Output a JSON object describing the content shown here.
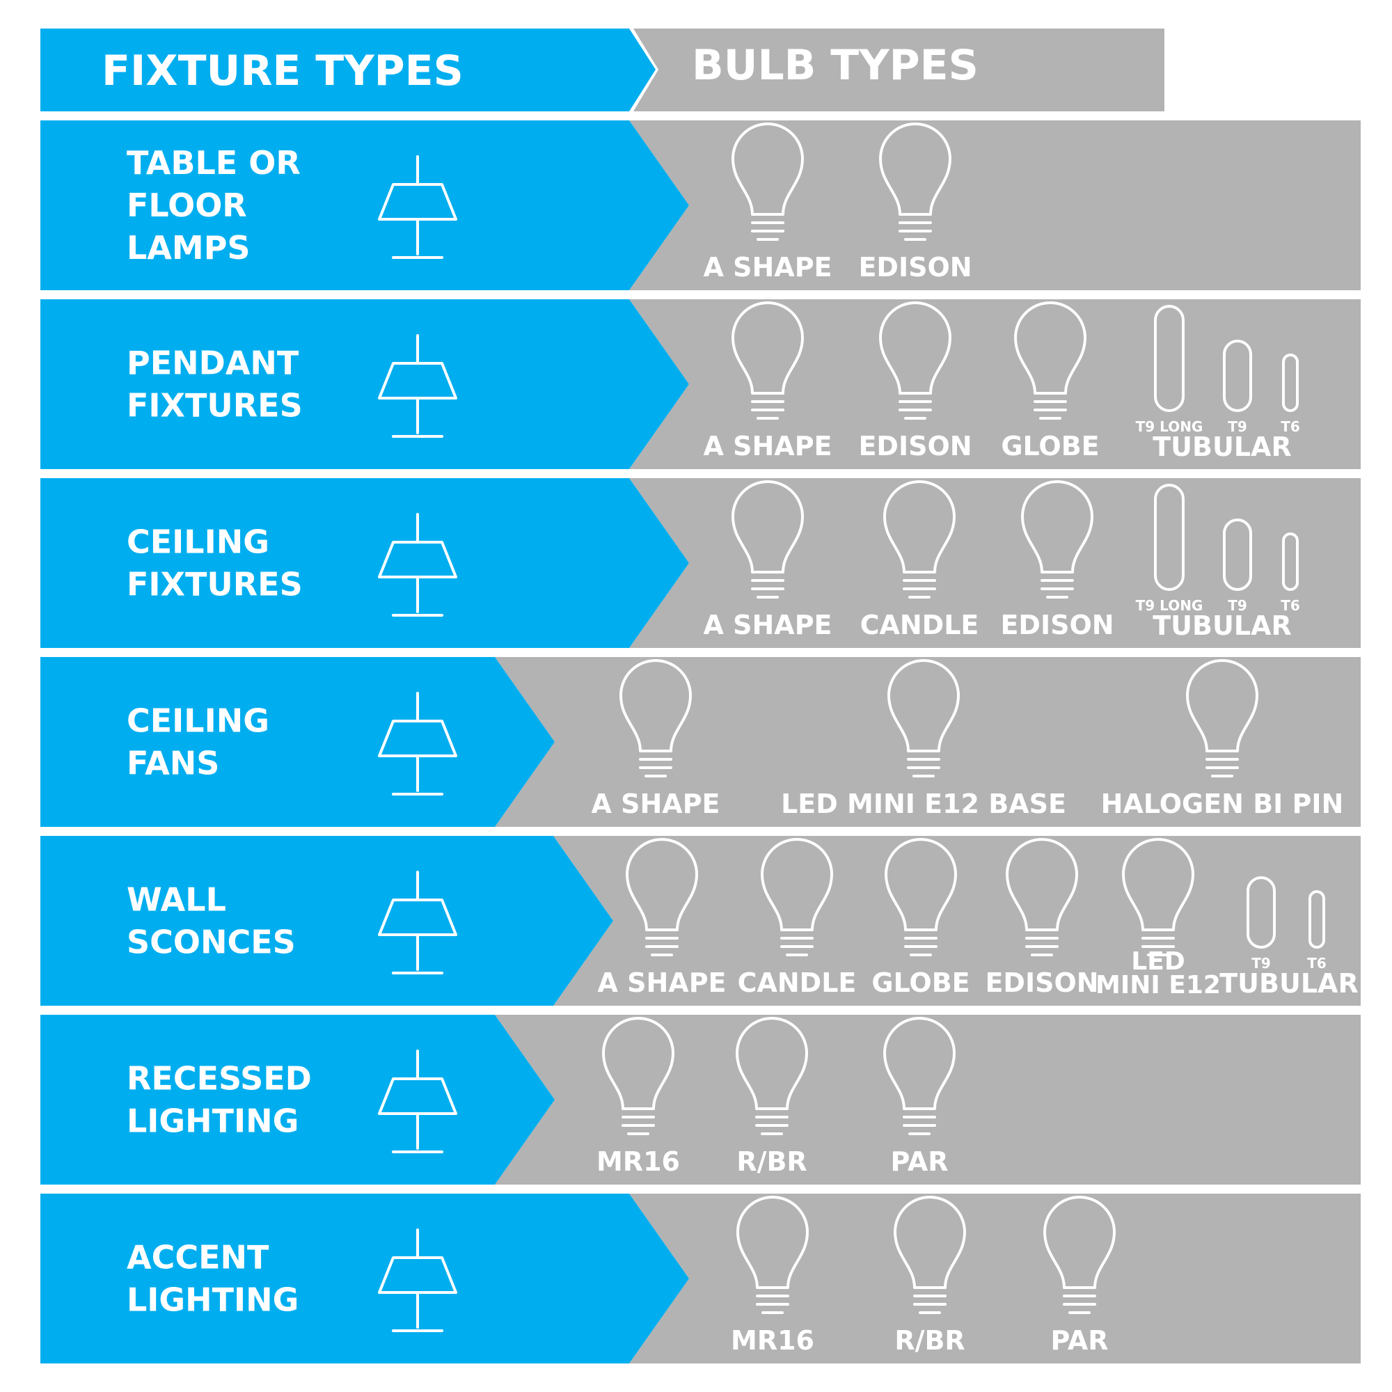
{
  "header": {
    "fixture_title": "FIXTURE TYPES",
    "bulb_title": "BULB TYPES"
  },
  "rows": [
    {
      "fixture": [
        "TABLE OR",
        "FLOOR",
        "LAMPS"
      ],
      "bulbs": [
        {
          "label": "A SHAPE"
        },
        {
          "label": "EDISON"
        }
      ]
    },
    {
      "fixture": [
        "PENDANT",
        "FIXTURES"
      ],
      "bulbs": [
        {
          "label": "A SHAPE"
        },
        {
          "label": "EDISON"
        },
        {
          "label": "GLOBE"
        },
        {
          "label": "TUBULAR",
          "sizes": [
            "T9 LONG",
            "T9",
            "T6"
          ]
        }
      ]
    },
    {
      "fixture": [
        "CEILING",
        "FIXTURES"
      ],
      "bulbs": [
        {
          "label": "A SHAPE"
        },
        {
          "label": "CANDLE"
        },
        {
          "label": "EDISON"
        },
        {
          "label": "TUBULAR",
          "sizes": [
            "T9 LONG",
            "T9",
            "T6"
          ]
        }
      ]
    },
    {
      "fixture": [
        "CEILING",
        "FANS"
      ],
      "bulbs": [
        {
          "label": "A SHAPE"
        },
        {
          "label": "LED MINI E12 BASE"
        },
        {
          "label": "HALOGEN BI PIN"
        }
      ]
    },
    {
      "fixture": [
        "WALL",
        "SCONCES"
      ],
      "bulbs": [
        {
          "label": "A SHAPE"
        },
        {
          "label": "CANDLE"
        },
        {
          "label": "GLOBE"
        },
        {
          "label": "EDISON"
        },
        {
          "label": [
            "LED",
            "MINI E12"
          ]
        },
        {
          "label": "TUBULAR",
          "sizes": [
            "T9",
            "T6"
          ]
        }
      ]
    },
    {
      "fixture": [
        "RECESSED",
        "LIGHTING"
      ],
      "bulbs": [
        {
          "label": "MR16"
        },
        {
          "label": "R/BR"
        },
        {
          "label": "PAR"
        }
      ]
    },
    {
      "fixture": [
        "ACCENT",
        "LIGHTING"
      ],
      "bulbs": [
        {
          "label": "MR16"
        },
        {
          "label": "R/BR"
        },
        {
          "label": "PAR"
        }
      ]
    }
  ]
}
